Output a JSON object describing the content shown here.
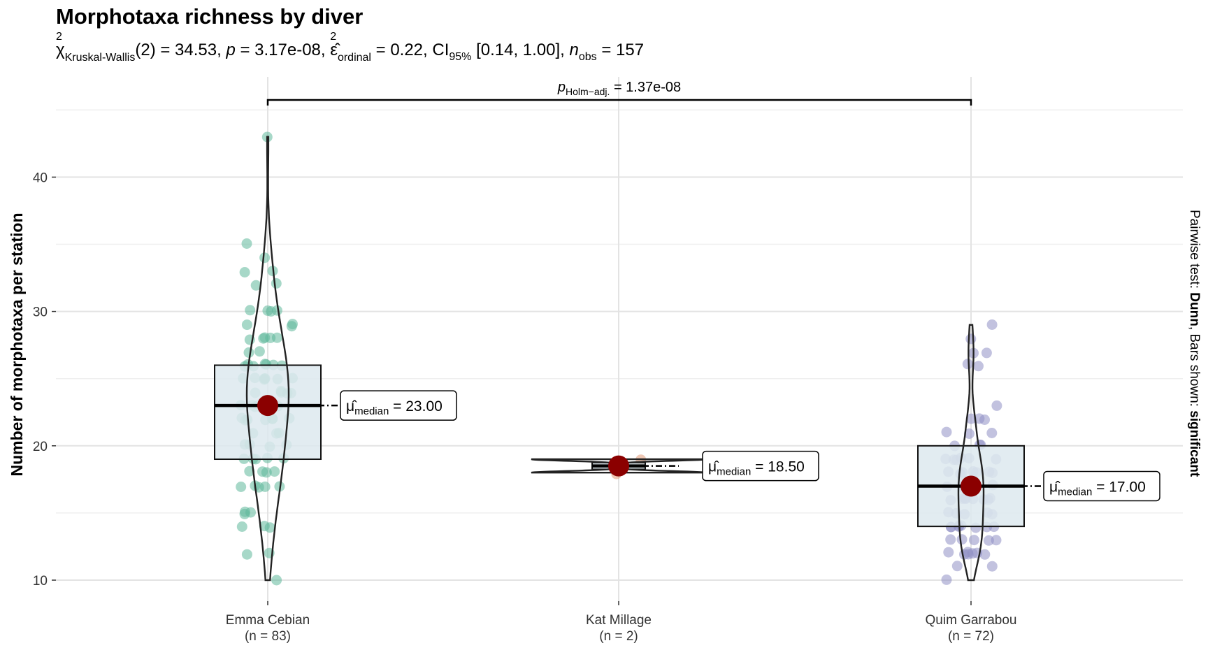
{
  "title": "Morphotaxa richness by diver",
  "subtitle": {
    "chi": "χ",
    "chi_sub": "Kruskal-Wallis",
    "df": "(2) = 34.53, ",
    "p_label": "p",
    "p_value": " = 3.17e-08, ",
    "eps": "ε̂",
    "eps_sub": "ordinal",
    "eps_value": " = 0.22, CI",
    "ci_sub": "95%",
    "ci_value": " [0.14, 1.00], ",
    "n_label": "n",
    "n_sub": "obs",
    "n_value": " = 157"
  },
  "side_caption": {
    "prefix": "Pairwise test: ",
    "test": "Dunn",
    "middle": ", Bars shown: ",
    "bars": "significant"
  },
  "chart_data": {
    "type": "box",
    "ylabel": "Number of morphotaxa per station",
    "xlabel": "",
    "ylim": [
      7.5,
      46
    ],
    "yticks": [
      10,
      20,
      30,
      40
    ],
    "grid": true,
    "colors": {
      "Emma Cebian": "#5fb89a",
      "Kat Millage": "#e29a78",
      "Quim Garrabou": "#8f90c5",
      "box_fill": "#dde9ef",
      "mean_point": "#8b0000"
    },
    "groups": [
      {
        "name": "Emma Cebian",
        "n_label": "(n = 83)",
        "q1": 19,
        "median": 23,
        "q3": 26,
        "min": 10,
        "max": 43,
        "median_label": "= 23.00",
        "points": [
          43,
          35,
          34,
          33,
          33,
          32,
          32,
          30,
          30,
          30,
          30,
          29,
          29,
          29,
          28,
          28,
          28,
          28,
          28,
          27,
          27,
          26,
          26,
          26,
          26,
          26,
          26,
          26,
          25,
          25,
          25,
          25,
          25,
          25,
          25,
          24,
          24,
          24,
          24,
          24,
          23,
          23,
          23,
          23,
          23,
          23,
          22,
          22,
          22,
          22,
          22,
          22,
          22,
          21,
          21,
          21,
          20,
          20,
          20,
          20,
          19,
          19,
          19,
          19,
          19,
          18,
          18,
          18,
          18,
          17,
          17,
          17,
          17,
          17,
          15,
          15,
          15,
          14,
          14,
          14,
          12,
          12,
          10
        ]
      },
      {
        "name": "Kat Millage",
        "n_label": "(n = 2)",
        "q1": 18.25,
        "median": 18.5,
        "q3": 18.75,
        "min": 18,
        "max": 19,
        "median_label": "= 18.50",
        "points": [
          19,
          18
        ]
      },
      {
        "name": "Quim Garrabou",
        "n_label": "(n = 72)",
        "q1": 14,
        "median": 17,
        "q3": 20,
        "min": 10,
        "max": 29,
        "median_label": "= 17.00",
        "points": [
          29,
          28,
          27,
          27,
          26,
          26,
          23,
          22,
          22,
          22,
          21,
          21,
          21,
          20,
          20,
          20,
          19,
          19,
          19,
          19,
          19,
          18,
          18,
          18,
          18,
          18,
          18,
          17,
          17,
          17,
          17,
          17,
          17,
          16,
          16,
          16,
          16,
          16,
          16,
          16,
          15,
          15,
          15,
          15,
          15,
          14,
          14,
          14,
          14,
          14,
          14,
          14,
          14,
          13,
          13,
          13,
          13,
          13,
          12,
          12,
          12,
          12,
          12,
          12,
          12,
          11,
          11,
          10,
          17,
          16,
          18,
          19
        ]
      }
    ],
    "comparison": {
      "from": "Emma Cebian",
      "to": "Quim Garrabou",
      "label_p": "p",
      "label_sub": "Holm−adj.",
      "label_value": " = 1.37e-08"
    },
    "median_symbol": "μ̂",
    "median_sub": "median"
  }
}
